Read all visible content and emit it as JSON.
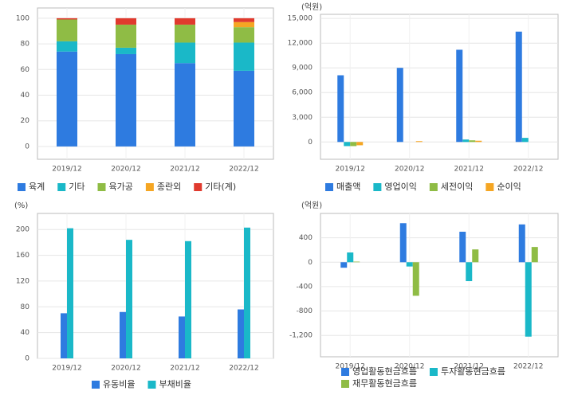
{
  "chart_data": [
    {
      "type": "bar",
      "stacked": true,
      "categories": [
        "2019/12",
        "2020/12",
        "2021/12",
        "2022/12"
      ],
      "series": [
        {
          "name": "육계",
          "color": "#2e7be0",
          "values": [
            74,
            72,
            65,
            59
          ]
        },
        {
          "name": "기타",
          "color": "#1ab8c8",
          "values": [
            8,
            5,
            16,
            22
          ]
        },
        {
          "name": "육가공",
          "color": "#8fbc45",
          "values": [
            17,
            18,
            14,
            12
          ]
        },
        {
          "name": "종란외",
          "color": "#f5a623",
          "values": [
            0,
            0,
            0,
            4
          ]
        },
        {
          "name": "기타(계)",
          "color": "#e03a2e",
          "values": [
            1,
            5,
            5,
            3
          ]
        }
      ],
      "ylim": [
        -10,
        108
      ],
      "yticks": [
        0,
        20,
        40,
        60,
        80,
        100
      ],
      "grid": true
    },
    {
      "type": "bar",
      "y_label": "(억원)",
      "categories": [
        "2019/12",
        "2020/12",
        "2021/12",
        "2022/12"
      ],
      "series": [
        {
          "name": "매출액",
          "color": "#2e7be0",
          "values": [
            8100,
            9000,
            11200,
            13400
          ]
        },
        {
          "name": "영업이익",
          "color": "#1ab8c8",
          "values": [
            -500,
            0,
            300,
            500
          ]
        },
        {
          "name": "세전이익",
          "color": "#8fbc45",
          "values": [
            -500,
            0,
            200,
            0
          ]
        },
        {
          "name": "순이익",
          "color": "#f5a623",
          "values": [
            -400,
            100,
            150,
            0
          ]
        }
      ],
      "ylim": [
        -2100,
        15500
      ],
      "yticks": [
        0,
        {
          "value": 3000,
          "label": "3,000"
        },
        {
          "value": 6000,
          "label": "6,000"
        },
        {
          "value": 9000,
          "label": "9,000"
        },
        {
          "value": 12000,
          "label": "12,000"
        },
        {
          "value": 15000,
          "label": "15,000"
        }
      ],
      "grid": true
    },
    {
      "type": "bar",
      "y_label": "(%)",
      "categories": [
        "2019/12",
        "2020/12",
        "2021/12",
        "2022/12"
      ],
      "series": [
        {
          "name": "유동비율",
          "color": "#2e7be0",
          "values": [
            70,
            72,
            65,
            76
          ]
        },
        {
          "name": "부채비율",
          "color": "#1ab8c8",
          "values": [
            202,
            184,
            182,
            203
          ]
        }
      ],
      "ylim": [
        0,
        225
      ],
      "yticks": [
        0,
        40,
        80,
        120,
        160,
        200
      ],
      "grid": true
    },
    {
      "type": "bar",
      "y_label": "(억원)",
      "categories": [
        "2019/12",
        "2020/12",
        "2021/12",
        "2022/12"
      ],
      "series": [
        {
          "name": "영업활동현금흐름",
          "color": "#2e7be0",
          "values": [
            -90,
            640,
            500,
            620
          ]
        },
        {
          "name": "투자활동현금흐름",
          "color": "#1ab8c8",
          "values": [
            160,
            -70,
            -310,
            -1220
          ]
        },
        {
          "name": "재무활동현금흐름",
          "color": "#8fbc45",
          "values": [
            10,
            -550,
            210,
            250
          ]
        }
      ],
      "ylim": [
        -1550,
        800
      ],
      "yticks": [
        {
          "value": -1200,
          "label": "-1,200"
        },
        -800,
        -400,
        0,
        400
      ],
      "grid": true
    }
  ]
}
